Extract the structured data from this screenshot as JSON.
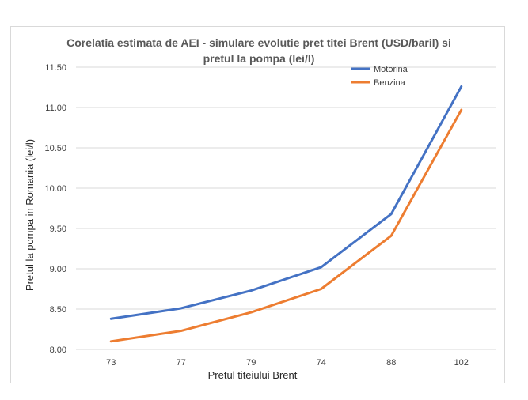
{
  "chart_data": {
    "type": "line",
    "title_lines": [
      "Corelatia estimata de AEI - simulare evolutie pret titei Brent (USD/baril) si",
      "pretul la pompa (lei/l)"
    ],
    "xlabel": "Pretul titeiului Brent",
    "ylabel": "Pretul la pompa in Romania (lei/l)",
    "categories": [
      "73",
      "77",
      "79",
      "74",
      "88",
      "102"
    ],
    "ylim": [
      8.0,
      11.5
    ],
    "ytick_labels": [
      "8.00",
      "8.50",
      "9.00",
      "9.50",
      "10.00",
      "10.50",
      "11.00",
      "11.50"
    ],
    "yticks": [
      8.0,
      8.5,
      9.0,
      9.5,
      10.0,
      10.5,
      11.0,
      11.5
    ],
    "grid": true,
    "legend_position": "top-right",
    "series": [
      {
        "name": "Motorina",
        "color": "#4472c4",
        "values": [
          8.38,
          8.51,
          8.73,
          9.02,
          9.68,
          11.26
        ]
      },
      {
        "name": "Benzina",
        "color": "#ed7d31",
        "values": [
          8.1,
          8.23,
          8.46,
          8.75,
          9.41,
          10.97
        ]
      }
    ]
  }
}
